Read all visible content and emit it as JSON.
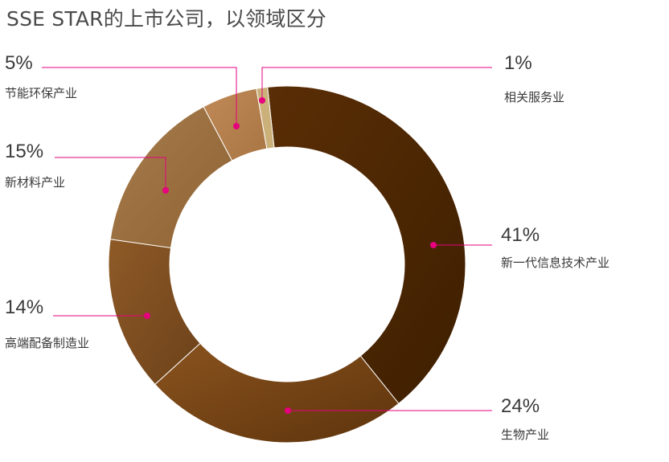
{
  "chart_data": {
    "type": "pie",
    "title": "SSE STAR的上市公司，以领域区分",
    "unit": "%",
    "slices": [
      {
        "label": "新一代信息技术产业",
        "value": 41,
        "value_label": "41%",
        "color_start": "#5a2e06",
        "color_end": "#3e1f00"
      },
      {
        "label": "生物产业",
        "value": 24,
        "value_label": "24%",
        "color_start": "#8a531e",
        "color_end": "#5e340c"
      },
      {
        "label": "高端配备制造业",
        "value": 14,
        "value_label": "14%",
        "color_start": "#8e5a27",
        "color_end": "#6c4119"
      },
      {
        "label": "新材料产业",
        "value": 15,
        "value_label": "15%",
        "color_start": "#a87d4d",
        "color_end": "#8e6233"
      },
      {
        "label": "节能环保产业",
        "value": 5,
        "value_label": "5%",
        "color_start": "#c08a57",
        "color_end": "#a87543"
      },
      {
        "label": "相关服务业",
        "value": 1,
        "value_label": "1%",
        "color_start": "#cbb07a",
        "color_end": "#cbb07a"
      }
    ],
    "marker_color": "#e6007e"
  }
}
